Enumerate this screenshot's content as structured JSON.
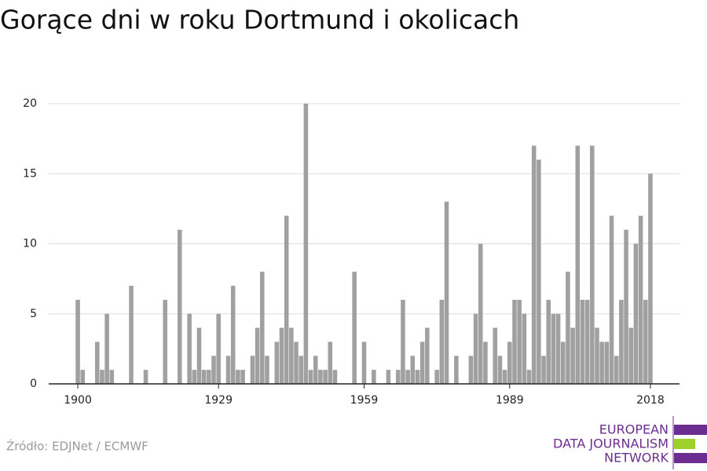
{
  "chart_data": {
    "type": "bar",
    "title": "Gorące dni w roku Dortmund i okolicach",
    "source": "Źródło: EDJNet / ECMWF",
    "logo": [
      "EUROPEAN",
      "DATA JOURNALISM",
      "NETWORK"
    ],
    "color": "#a0a0a0",
    "x": [
      1900,
      1901,
      1902,
      1903,
      1904,
      1905,
      1906,
      1907,
      1908,
      1909,
      1910,
      1911,
      1912,
      1913,
      1914,
      1915,
      1916,
      1917,
      1918,
      1919,
      1920,
      1921,
      1922,
      1923,
      1924,
      1925,
      1926,
      1927,
      1928,
      1929,
      1930,
      1931,
      1932,
      1933,
      1934,
      1935,
      1936,
      1937,
      1938,
      1939,
      1940,
      1941,
      1942,
      1943,
      1944,
      1945,
      1946,
      1947,
      1948,
      1949,
      1950,
      1951,
      1952,
      1953,
      1954,
      1955,
      1956,
      1957,
      1958,
      1959,
      1960,
      1961,
      1962,
      1963,
      1964,
      1965,
      1966,
      1967,
      1968,
      1969,
      1970,
      1971,
      1972,
      1973,
      1974,
      1975,
      1976,
      1977,
      1978,
      1979,
      1980,
      1981,
      1982,
      1983,
      1984,
      1985,
      1986,
      1987,
      1988,
      1989,
      1990,
      1991,
      1992,
      1993,
      1994,
      1995,
      1996,
      1997,
      1998,
      1999,
      2000,
      2001,
      2002,
      2003,
      2004,
      2005,
      2006,
      2007,
      2008,
      2009,
      2010,
      2011,
      2012,
      2013,
      2014,
      2015,
      2016,
      2017,
      2018
    ],
    "values": [
      6,
      1,
      0,
      0,
      3,
      1,
      5,
      1,
      0,
      0,
      0,
      7,
      0,
      0,
      1,
      0,
      0,
      0,
      6,
      0,
      0,
      11,
      0,
      5,
      1,
      4,
      1,
      1,
      2,
      5,
      0,
      2,
      7,
      1,
      1,
      0,
      2,
      4,
      8,
      2,
      0,
      3,
      4,
      12,
      4,
      3,
      2,
      20,
      1,
      2,
      1,
      1,
      3,
      1,
      0,
      0,
      0,
      8,
      0,
      3,
      0,
      1,
      0,
      0,
      1,
      0,
      1,
      6,
      1,
      2,
      1,
      3,
      4,
      0,
      1,
      6,
      13,
      0,
      2,
      0,
      0,
      2,
      5,
      10,
      3,
      0,
      4,
      2,
      1,
      3,
      6,
      6,
      5,
      1,
      17,
      16,
      2,
      6,
      5,
      5,
      3,
      8,
      4,
      17,
      6,
      6,
      17,
      4,
      3,
      3,
      12,
      2,
      6,
      11,
      4,
      10,
      12,
      6,
      15
    ],
    "xlim": [
      1894,
      2024
    ],
    "xticks": [
      1900,
      1929,
      1959,
      1989,
      2018
    ],
    "ylim": [
      0,
      20
    ],
    "yticks": [
      0,
      5,
      10,
      15,
      20
    ],
    "grid": true
  }
}
